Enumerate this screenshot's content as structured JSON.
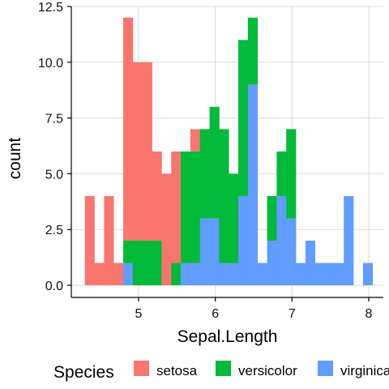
{
  "chart_data": {
    "type": "bar",
    "stacked": true,
    "histogram": true,
    "xlabel": "Sepal.Length",
    "ylabel": "count",
    "xlim": [
      4.2,
      8.1
    ],
    "ylim": [
      0,
      12.5
    ],
    "x_ticks": [
      {
        "value": 5,
        "label": "5"
      },
      {
        "value": 6,
        "label": "6"
      },
      {
        "value": 7,
        "label": "7"
      },
      {
        "value": 8,
        "label": "8"
      }
    ],
    "y_ticks": [
      {
        "value": 0,
        "label": "0.0"
      },
      {
        "value": 2.5,
        "label": "2.5"
      },
      {
        "value": 5,
        "label": "5.0"
      },
      {
        "value": 7.5,
        "label": "7.5"
      },
      {
        "value": 10,
        "label": "10.0"
      },
      {
        "value": 12.5,
        "label": "12.5"
      }
    ],
    "grid": true,
    "bin_width": 0.125,
    "bin_starts": [
      4.3,
      4.425,
      4.55,
      4.675,
      4.8,
      4.925,
      5.05,
      5.175,
      5.3,
      5.425,
      5.55,
      5.675,
      5.8,
      5.925,
      6.05,
      6.175,
      6.3,
      6.425,
      6.55,
      6.675,
      6.8,
      6.925,
      7.05,
      7.175,
      7.3,
      7.425,
      7.55,
      7.675,
      7.8,
      7.925
    ],
    "series": [
      {
        "name": "setosa",
        "color": "#F8766D",
        "values": [
          4,
          1,
          4,
          1,
          10,
          8,
          8,
          4,
          5,
          5,
          0,
          1,
          0,
          0,
          0,
          0,
          0,
          0,
          0,
          0,
          0,
          0,
          0,
          0,
          0,
          0,
          0,
          0,
          0,
          0
        ]
      },
      {
        "name": "versicolor",
        "color": "#00BA38",
        "values": [
          0,
          0,
          0,
          0,
          1,
          2,
          2,
          2,
          0,
          1,
          5,
          5,
          4,
          5,
          6,
          4,
          7,
          3,
          0,
          2,
          2,
          4,
          0,
          0,
          0,
          0,
          0,
          0,
          0,
          0
        ]
      },
      {
        "name": "virginica",
        "color": "#619CFF",
        "values": [
          0,
          0,
          0,
          0,
          1,
          0,
          0,
          0,
          0,
          0,
          1,
          1,
          3,
          3,
          1,
          1,
          4,
          9,
          1,
          2,
          4,
          3,
          1,
          2,
          1,
          1,
          1,
          4,
          0,
          1
        ]
      }
    ],
    "legend": {
      "title": "Species",
      "position": "bottom",
      "entries": [
        "setosa",
        "versicolor",
        "virginica"
      ]
    }
  }
}
